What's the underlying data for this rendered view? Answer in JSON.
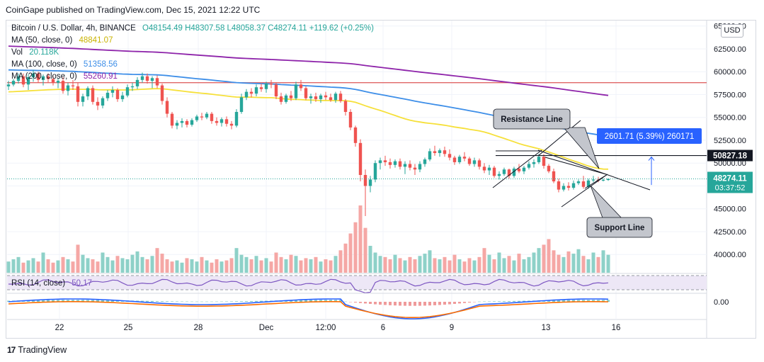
{
  "header": {
    "published": "CoinGape published on TradingView.com, Dec 15, 2021 12:22 UTC"
  },
  "legend": {
    "symbol": "Bitcoin / U.S. Dollar, 4h, BINANCE",
    "ohlc": "O48154.49 H48307.58 L48058.37 C48274.11 +119.62 (+0.25%)",
    "ma50_label": "MA (50, close, 0)",
    "ma50_value": "48841.07",
    "vol_label": "Vol",
    "vol_value": "20.118K",
    "ma100_label": "MA (100, close, 0)",
    "ma100_value": "51358.56",
    "ma200_label": "MA (200, close, 0)",
    "ma200_value": "55260.91",
    "rsi_label": "RSI (14, close)",
    "rsi_value": "50.17"
  },
  "currency_button": "USD",
  "footer": {
    "brand": "TradingView",
    "logo": "17"
  },
  "colors": {
    "up": "#26a69a",
    "down": "#ef5350",
    "vol_up": "#8ed1c8",
    "vol_down": "#f5a7a5",
    "ma50": "#f6e03a",
    "ma100": "#3d8ee8",
    "ma200": "#8e24aa",
    "hline": "#e06666",
    "rsi": "#7e57c2",
    "rsi_band": "#ede7f6",
    "macd": "#2962ff",
    "signal": "#ff6d00"
  },
  "chart_data": {
    "type": "candlestick",
    "timeframe": "4h",
    "y_ticks": [
      "65000.00",
      "62500.00",
      "60000.00",
      "57500.00",
      "55000.00",
      "52500.00",
      "50000.00",
      "47500.00",
      "45000.00",
      "42500.00",
      "40000.00"
    ],
    "ylim": [
      38000,
      65600
    ],
    "x_ticks": [
      "22",
      "25",
      "28",
      "Dec",
      "12:00",
      "6",
      "9",
      "13",
      "16"
    ],
    "last_price": {
      "value": "48274.11",
      "countdown": "03:37:52"
    },
    "marked_price": "50827.18",
    "horizontal_line": 58800,
    "measure_label": "2601.71 (5.39%) 260171",
    "annotations": {
      "resistance": "Resistance Line",
      "support": "Support Line"
    },
    "candles": [
      [
        0,
        58400,
        59000,
        58000,
        58600
      ],
      [
        1,
        58600,
        59200,
        58400,
        59000
      ],
      [
        2,
        59000,
        59800,
        58700,
        59500
      ],
      [
        3,
        59500,
        59800,
        58300,
        58600
      ],
      [
        4,
        58600,
        59700,
        58000,
        59400
      ],
      [
        5,
        59400,
        60200,
        58900,
        59800
      ],
      [
        6,
        59800,
        60000,
        58800,
        59100
      ],
      [
        7,
        59100,
        59700,
        58500,
        59500
      ],
      [
        8,
        59500,
        59800,
        58800,
        59200
      ],
      [
        9,
        59200,
        59500,
        58500,
        58800
      ],
      [
        10,
        58800,
        59300,
        58200,
        59000
      ],
      [
        11,
        59000,
        59400,
        57600,
        57900
      ],
      [
        12,
        57900,
        58800,
        57400,
        58500
      ],
      [
        13,
        58500,
        59100,
        58000,
        58400
      ],
      [
        14,
        58400,
        58800,
        56200,
        56700
      ],
      [
        15,
        56700,
        57600,
        56200,
        57300
      ],
      [
        16,
        57300,
        58400,
        56900,
        58200
      ],
      [
        17,
        58200,
        58500,
        56400,
        56700
      ],
      [
        18,
        56700,
        57200,
        55800,
        56300
      ],
      [
        19,
        56300,
        57300,
        56000,
        57100
      ],
      [
        20,
        57100,
        58000,
        56800,
        57700
      ],
      [
        21,
        57700,
        58400,
        57200,
        58000
      ],
      [
        22,
        58000,
        58200,
        56700,
        57000
      ],
      [
        23,
        57000,
        57800,
        56700,
        57400
      ],
      [
        24,
        57400,
        58600,
        57200,
        58300
      ],
      [
        25,
        58300,
        58800,
        57900,
        58400
      ],
      [
        26,
        58400,
        59400,
        58100,
        59100
      ],
      [
        27,
        59100,
        59900,
        58800,
        59500
      ],
      [
        28,
        59500,
        59800,
        58700,
        59000
      ],
      [
        29,
        59000,
        59500,
        58200,
        59300
      ],
      [
        30,
        59300,
        59600,
        58200,
        58500
      ],
      [
        31,
        58500,
        58700,
        56400,
        56800
      ],
      [
        32,
        56800,
        57200,
        55000,
        55400
      ],
      [
        33,
        55400,
        55600,
        53800,
        54100
      ],
      [
        34,
        54100,
        54700,
        53700,
        54400
      ],
      [
        35,
        54400,
        54900,
        53900,
        54600
      ],
      [
        36,
        54600,
        54800,
        53900,
        54200
      ],
      [
        37,
        54200,
        54900,
        54000,
        54700
      ],
      [
        38,
        54700,
        55300,
        54500,
        55100
      ],
      [
        39,
        55100,
        55500,
        54700,
        55000
      ],
      [
        40,
        55000,
        55600,
        54800,
        55400
      ],
      [
        41,
        55400,
        55600,
        54300,
        54600
      ],
      [
        42,
        54600,
        55000,
        54100,
        54400
      ],
      [
        43,
        54400,
        55000,
        54000,
        54800
      ],
      [
        44,
        54800,
        55100,
        54000,
        54300
      ],
      [
        45,
        54300,
        54600,
        53700,
        54100
      ],
      [
        46,
        54100,
        55900,
        53900,
        55600
      ],
      [
        47,
        55600,
        57600,
        55400,
        57200
      ],
      [
        48,
        57200,
        58100,
        56900,
        57800
      ],
      [
        49,
        57800,
        58200,
        57200,
        57600
      ],
      [
        50,
        57600,
        58600,
        57300,
        58300
      ],
      [
        51,
        58300,
        58700,
        57800,
        58100
      ],
      [
        52,
        58100,
        58900,
        57700,
        58700
      ],
      [
        53,
        58700,
        59100,
        58200,
        58600
      ],
      [
        54,
        58600,
        58800,
        57000,
        57300
      ],
      [
        55,
        57300,
        57700,
        56400,
        56700
      ],
      [
        56,
        56700,
        57600,
        56500,
        57400
      ],
      [
        57,
        57400,
        57900,
        56800,
        57100
      ],
      [
        58,
        57100,
        58900,
        56900,
        58600
      ],
      [
        59,
        58600,
        59100,
        57900,
        58200
      ],
      [
        60,
        58200,
        58400,
        56900,
        57100
      ],
      [
        61,
        57100,
        57600,
        56500,
        57300
      ],
      [
        62,
        57300,
        57700,
        56700,
        57000
      ],
      [
        63,
        57000,
        57600,
        56600,
        57400
      ],
      [
        64,
        57400,
        57800,
        56900,
        57200
      ],
      [
        65,
        57200,
        57600,
        56700,
        56900
      ],
      [
        66,
        56900,
        57800,
        56600,
        57600
      ],
      [
        67,
        57600,
        57900,
        56600,
        56800
      ],
      [
        68,
        56800,
        57000,
        55200,
        55600
      ],
      [
        69,
        55600,
        55900,
        53600,
        53900
      ],
      [
        70,
        53900,
        54100,
        51800,
        52200
      ],
      [
        71,
        52200,
        52600,
        48000,
        48700
      ],
      [
        72,
        48700,
        49300,
        44200,
        47500
      ],
      [
        73,
        47500,
        48600,
        46800,
        48200
      ],
      [
        74,
        48200,
        50300,
        47900,
        50000
      ],
      [
        75,
        50000,
        50600,
        49300,
        50300
      ],
      [
        76,
        50300,
        50800,
        49700,
        50100
      ],
      [
        77,
        50100,
        50500,
        49400,
        49800
      ],
      [
        78,
        49800,
        50400,
        49500,
        50200
      ],
      [
        79,
        50200,
        50500,
        49300,
        49600
      ],
      [
        80,
        49600,
        50200,
        48800,
        49900
      ],
      [
        81,
        49900,
        50300,
        49200,
        49500
      ],
      [
        82,
        49500,
        49900,
        48700,
        49300
      ],
      [
        83,
        49300,
        50200,
        49000,
        49900
      ],
      [
        84,
        49900,
        50600,
        49600,
        50400
      ],
      [
        85,
        50400,
        51600,
        50200,
        51300
      ],
      [
        86,
        51300,
        51900,
        50800,
        51100
      ],
      [
        87,
        51100,
        51600,
        50700,
        51400
      ],
      [
        88,
        51400,
        51800,
        50700,
        51000
      ],
      [
        89,
        51000,
        51500,
        50300,
        50600
      ],
      [
        90,
        50600,
        50800,
        49800,
        50100
      ],
      [
        91,
        50100,
        50900,
        49900,
        50700
      ],
      [
        92,
        50700,
        51200,
        50200,
        50500
      ],
      [
        93,
        50500,
        50700,
        49700,
        49900
      ],
      [
        94,
        49900,
        50600,
        49600,
        50300
      ],
      [
        95,
        50300,
        50500,
        49300,
        49600
      ],
      [
        96,
        49600,
        50000,
        48900,
        49200
      ],
      [
        97,
        49200,
        49800,
        48700,
        49500
      ],
      [
        98,
        49500,
        49700,
        48400,
        48600
      ],
      [
        99,
        48600,
        49100,
        48200,
        48800
      ],
      [
        100,
        48800,
        49500,
        48600,
        49300
      ],
      [
        101,
        49300,
        49400,
        48300,
        48600
      ],
      [
        102,
        48600,
        49600,
        48400,
        49400
      ],
      [
        103,
        49400,
        49900,
        48900,
        49100
      ],
      [
        104,
        49100,
        49700,
        48800,
        49500
      ],
      [
        105,
        49500,
        50200,
        49300,
        49900
      ],
      [
        106,
        49900,
        50400,
        49500,
        50100
      ],
      [
        107,
        50100,
        51000,
        49900,
        50700
      ],
      [
        108,
        50700,
        51000,
        49400,
        49700
      ],
      [
        109,
        49700,
        49900,
        48900,
        49100
      ],
      [
        110,
        49100,
        49400,
        47800,
        48000
      ],
      [
        111,
        48000,
        48300,
        46800,
        47100
      ],
      [
        112,
        47100,
        47800,
        46900,
        47500
      ],
      [
        113,
        47500,
        47900,
        47000,
        47300
      ],
      [
        114,
        47300,
        48100,
        47100,
        47800
      ],
      [
        115,
        47800,
        48200,
        47600,
        48000
      ],
      [
        116,
        48000,
        48600,
        47200,
        47400
      ],
      [
        117,
        47400,
        48300,
        47200,
        48100
      ],
      [
        118,
        48100,
        48600,
        47900,
        48200
      ],
      [
        119,
        48200,
        48500,
        47900,
        48100
      ],
      [
        120,
        48100,
        48300,
        48000,
        48150
      ],
      [
        121,
        48154,
        48307,
        48058,
        48274
      ]
    ],
    "volume": [
      10,
      12,
      14,
      9,
      11,
      13,
      10,
      18,
      12,
      9,
      11,
      14,
      12,
      10,
      25,
      16,
      13,
      12,
      10,
      18,
      14,
      11,
      15,
      13,
      12,
      16,
      19,
      14,
      12,
      15,
      22,
      17,
      12,
      10,
      11,
      9,
      13,
      12,
      10,
      14,
      11,
      9,
      12,
      10,
      11,
      13,
      22,
      16,
      14,
      12,
      15,
      11,
      13,
      10,
      18,
      14,
      12,
      16,
      15,
      11,
      13,
      12,
      14,
      10,
      12,
      11,
      15,
      20,
      26,
      35,
      45,
      60,
      40,
      24,
      18,
      15,
      14,
      12,
      16,
      13,
      11,
      14,
      12,
      15,
      17,
      20,
      13,
      12,
      14,
      11,
      16,
      12,
      10,
      13,
      11,
      14,
      22,
      16,
      12,
      18,
      13,
      15,
      11,
      17,
      12,
      14,
      18,
      22,
      25,
      30,
      20,
      16,
      14,
      19,
      17,
      21,
      15,
      12,
      18,
      14,
      20,
      16
    ],
    "rsi": {
      "value": 50.17
    },
    "macd": {
      "zero_label": "0.00"
    }
  }
}
